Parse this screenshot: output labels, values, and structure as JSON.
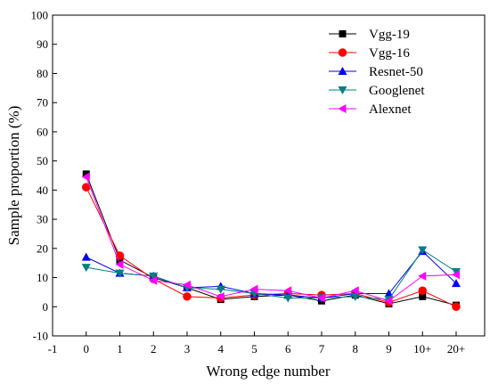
{
  "chart_data": {
    "type": "line",
    "xlabel": "Wrong edge number",
    "ylabel": "Sample proportion (%)",
    "x_tick_labels": [
      "-1",
      "0",
      "1",
      "2",
      "3",
      "4",
      "5",
      "6",
      "7",
      "8",
      "9",
      "10+",
      "20+"
    ],
    "y_tick_labels": [
      "-10",
      "0",
      "10",
      "20",
      "30",
      "40",
      "50",
      "60",
      "70",
      "80",
      "90",
      "100"
    ],
    "ylim": [
      -10,
      100
    ],
    "grid": false,
    "legend_position": "top-right",
    "categories": [
      "0",
      "1",
      "2",
      "3",
      "4",
      "5",
      "6",
      "7",
      "8",
      "9",
      "10+",
      "20+"
    ],
    "series": [
      {
        "name": "Vgg-19",
        "color": "#000000",
        "marker": "square",
        "values": [
          45.5,
          16,
          10,
          6.5,
          2.5,
          3.5,
          4,
          2,
          4,
          1,
          3.5,
          0.5
        ]
      },
      {
        "name": "Vgg-16",
        "color": "#ff0000",
        "marker": "circle",
        "values": [
          41,
          17.5,
          9.5,
          3.5,
          3,
          4,
          4.5,
          4,
          4.5,
          1.5,
          5.5,
          0
        ]
      },
      {
        "name": "Resnet-50",
        "color": "#0000ff",
        "marker": "triangle-up",
        "values": [
          17,
          11.5,
          10.5,
          6.5,
          7,
          4.5,
          4,
          3,
          4.5,
          4.5,
          19,
          8
        ]
      },
      {
        "name": "Googlenet",
        "color": "#008080",
        "marker": "triangle-down",
        "values": [
          13.5,
          11.5,
          10.5,
          6.5,
          6,
          4.5,
          3,
          3,
          3.5,
          2.5,
          19.5,
          12
        ]
      },
      {
        "name": "Alexnet",
        "color": "#ff00ff",
        "marker": "triangle-left",
        "values": [
          44.5,
          14.5,
          9,
          7.5,
          3.5,
          6,
          5.5,
          3,
          5.5,
          2,
          10.5,
          11
        ]
      }
    ]
  }
}
